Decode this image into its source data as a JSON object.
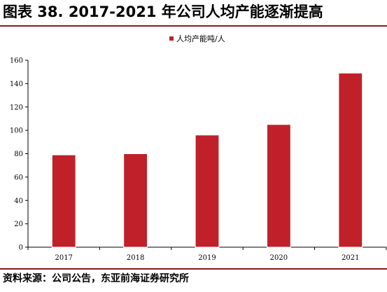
{
  "header": {
    "title": "图表 38. 2017-2021 年公司人均产能逐渐提高"
  },
  "footer": {
    "source": "资料来源：公司公告，东亚前海证券研究所"
  },
  "chart_data": {
    "type": "bar",
    "categories": [
      "2017",
      "2018",
      "2019",
      "2020",
      "2021"
    ],
    "series": [
      {
        "name": "人均产能吨/人",
        "values": [
          79,
          80,
          96,
          105,
          149
        ]
      }
    ],
    "ylim": [
      0,
      160
    ],
    "yticks": [
      0,
      20,
      40,
      60,
      80,
      100,
      120,
      140,
      160
    ],
    "grid": false,
    "legend_position": "top-center",
    "colors": {
      "bar": "#c0202a",
      "bar_edge": "#ffffff",
      "axis": "#000000"
    }
  }
}
